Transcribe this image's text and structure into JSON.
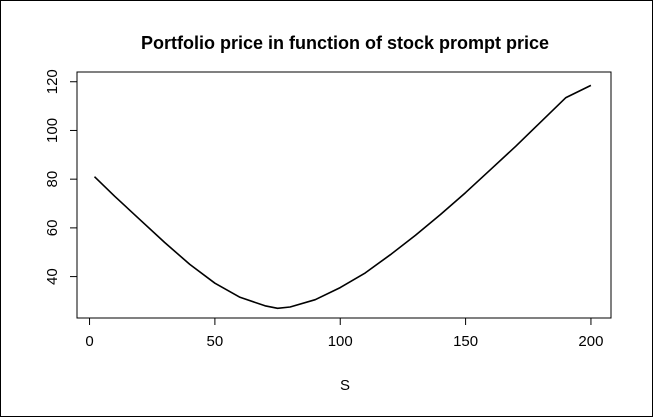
{
  "chart_data": {
    "type": "line",
    "title": "Portfolio price in function of stock prompt price",
    "xlabel": "S",
    "ylabel": "",
    "xlim": [
      -5,
      208
    ],
    "ylim": [
      23,
      124
    ],
    "x_ticks": [
      0,
      50,
      100,
      150,
      200
    ],
    "y_ticks": [
      40,
      60,
      80,
      100,
      120
    ],
    "grid": false,
    "series": [
      {
        "color": "#000000",
        "points": [
          [
            2,
            81
          ],
          [
            10,
            73
          ],
          [
            20,
            63.5
          ],
          [
            30,
            54
          ],
          [
            40,
            45
          ],
          [
            50,
            37.3
          ],
          [
            60,
            31.5
          ],
          [
            70,
            28
          ],
          [
            75,
            27
          ],
          [
            80,
            27.5
          ],
          [
            90,
            30.5
          ],
          [
            100,
            35.5
          ],
          [
            110,
            41.5
          ],
          [
            120,
            49
          ],
          [
            130,
            57
          ],
          [
            140,
            65.5
          ],
          [
            150,
            74.5
          ],
          [
            160,
            84
          ],
          [
            170,
            93.5
          ],
          [
            180,
            103.5
          ],
          [
            190,
            113.5
          ],
          [
            200,
            118.5
          ]
        ]
      }
    ]
  }
}
